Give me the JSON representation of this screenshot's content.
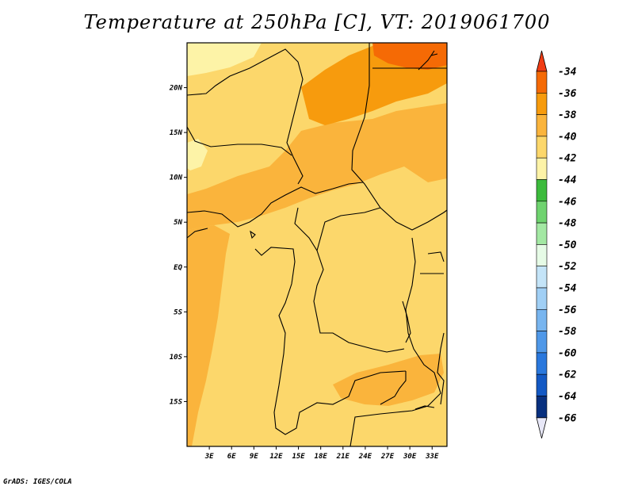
{
  "title": "Temperature at 250hPa [C], VT: 2019061700",
  "credit": "GrADS: IGES/COLA",
  "map": {
    "lat_ticks": [
      "20N",
      "15N",
      "10N",
      "5N",
      "EQ",
      "5S",
      "10S",
      "15S"
    ],
    "lat_values": [
      20,
      15,
      10,
      5,
      0,
      -5,
      -10,
      -15
    ],
    "lon_ticks": [
      "3E",
      "6E",
      "9E",
      "12E",
      "15E",
      "18E",
      "21E",
      "24E",
      "27E",
      "30E",
      "33E"
    ],
    "lon_values": [
      3,
      6,
      9,
      12,
      15,
      18,
      21,
      24,
      27,
      30,
      33
    ],
    "lon_range": [
      0,
      35
    ],
    "lat_range": [
      -20,
      25
    ]
  },
  "colorbar": {
    "labels": [
      "-34",
      "-36",
      "-38",
      "-40",
      "-42",
      "-44",
      "-46",
      "-48",
      "-50",
      "-52",
      "-54",
      "-56",
      "-58",
      "-60",
      "-62",
      "-64",
      "-66"
    ],
    "colors": [
      "#f03c14",
      "#f56a05",
      "#f79b0d",
      "#fab43c",
      "#fcd76b",
      "#fdf3a7",
      "#3cbb3c",
      "#6fd36f",
      "#a3e8a3",
      "#e6fbe6",
      "#c4e4f8",
      "#a0cff5",
      "#78b5ef",
      "#4f98e8",
      "#2a78dd",
      "#1359c4",
      "#08307f",
      "#0a1770"
    ],
    "top_arrow_color": "#f03c14",
    "bottom_arrow_color": "#e8e8f8"
  }
}
